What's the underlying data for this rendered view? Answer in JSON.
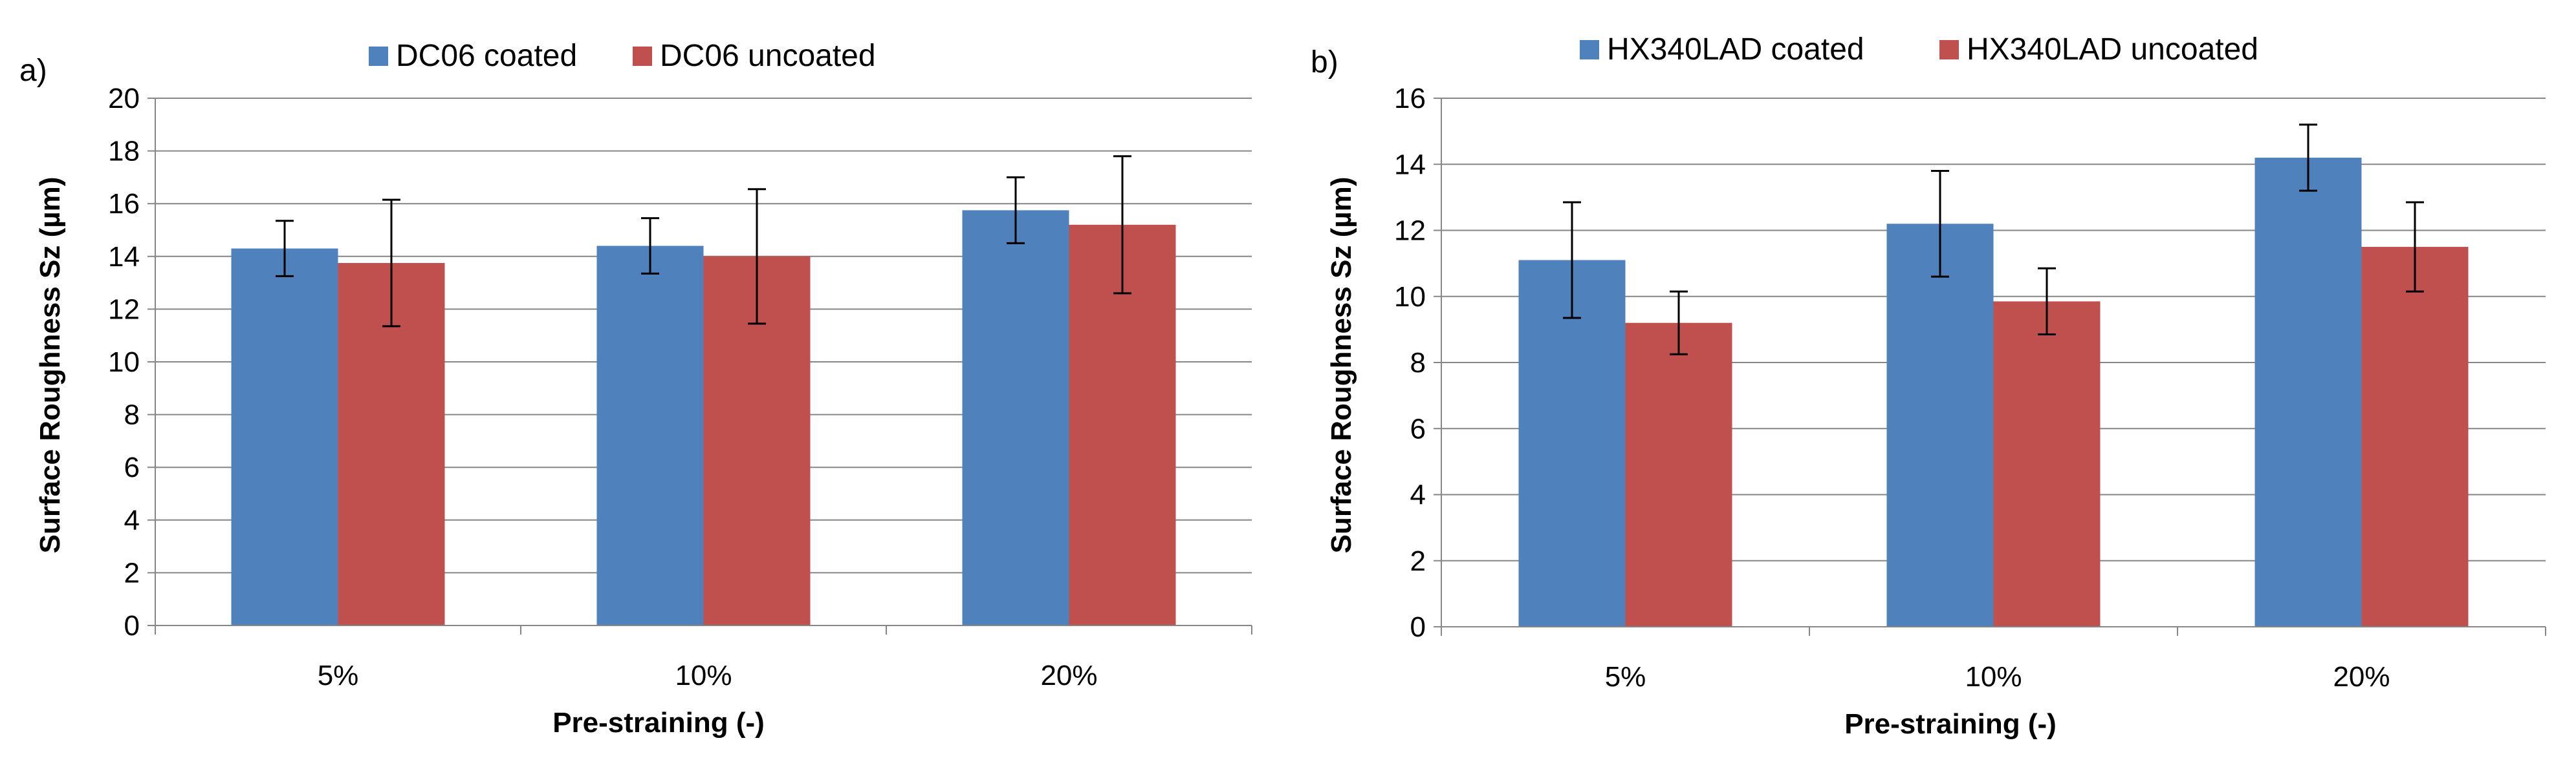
{
  "chart_data": [
    {
      "type": "bar",
      "panel": "a)",
      "categories": [
        "5%",
        "10%",
        "20%"
      ],
      "series": [
        {
          "name": "DC06 coated",
          "values": [
            14.3,
            14.4,
            15.75
          ],
          "error": [
            1.05,
            1.05,
            1.25
          ]
        },
        {
          "name": "DC06 uncoated",
          "values": [
            13.75,
            14.0,
            15.2
          ],
          "error": [
            2.4,
            2.55,
            2.6
          ]
        }
      ],
      "xlabel": "Pre-straining (-)",
      "ylabel": "Surface Roughness Sz (µm)",
      "ylim": [
        0,
        20
      ],
      "yticks": [
        0,
        2,
        4,
        6,
        8,
        10,
        12,
        14,
        16,
        18,
        20
      ],
      "grid": true,
      "legend": "top"
    },
    {
      "type": "bar",
      "panel": "b)",
      "categories": [
        "5%",
        "10%",
        "20%"
      ],
      "series": [
        {
          "name": "HX340LAD coated",
          "values": [
            11.1,
            12.2,
            14.2
          ],
          "error": [
            1.75,
            1.6,
            1.0
          ]
        },
        {
          "name": "HX340LAD uncoated",
          "values": [
            9.2,
            9.85,
            11.5
          ],
          "error": [
            0.95,
            1.0,
            1.35
          ]
        }
      ],
      "xlabel": "Pre-straining (-)",
      "ylabel": "Surface Roughness Sz (µm)",
      "ylim": [
        0,
        16
      ],
      "yticks": [
        0,
        2,
        4,
        6,
        8,
        10,
        12,
        14,
        16
      ],
      "grid": true,
      "legend": "top"
    }
  ],
  "colors": {
    "coated": "#4f81bd",
    "uncoated": "#c0504d",
    "grid": "#868686",
    "axis": "#868686",
    "error": "#000000"
  }
}
